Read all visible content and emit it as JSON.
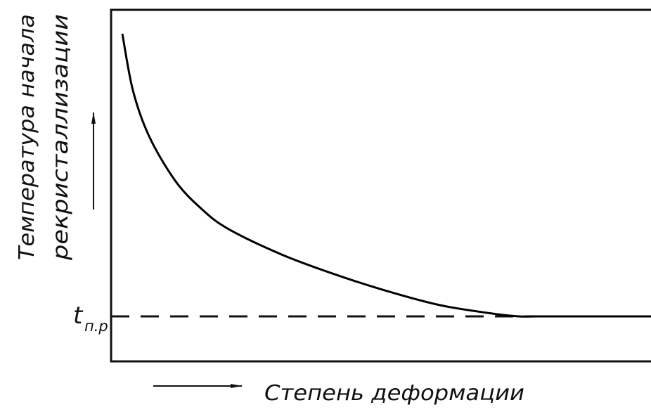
{
  "chart_data": {
    "type": "line",
    "title": "",
    "ylabel_lines": [
      "Температура начала",
      "рекристаллизации"
    ],
    "xlabel": "Степень деформации",
    "reference_line": {
      "label": "t",
      "label_subscript": "п.р",
      "style": "dashed"
    },
    "x_ticks": false,
    "y_ticks": false,
    "grid": false,
    "axis_arrows": true,
    "series": [
      {
        "shape": "decreasing curve leveling onto the dashed reference line",
        "color": "#000000",
        "x": [
          0.0,
          0.02,
          0.05,
          0.1,
          0.15,
          0.2,
          0.3,
          0.4,
          0.5,
          0.6,
          0.7,
          0.75,
          0.8,
          1.0
        ],
        "y": [
          1.0,
          0.8,
          0.64,
          0.48,
          0.38,
          0.31,
          0.22,
          0.15,
          0.09,
          0.04,
          0.01,
          0.0,
          0.0,
          0.0
        ]
      }
    ]
  }
}
